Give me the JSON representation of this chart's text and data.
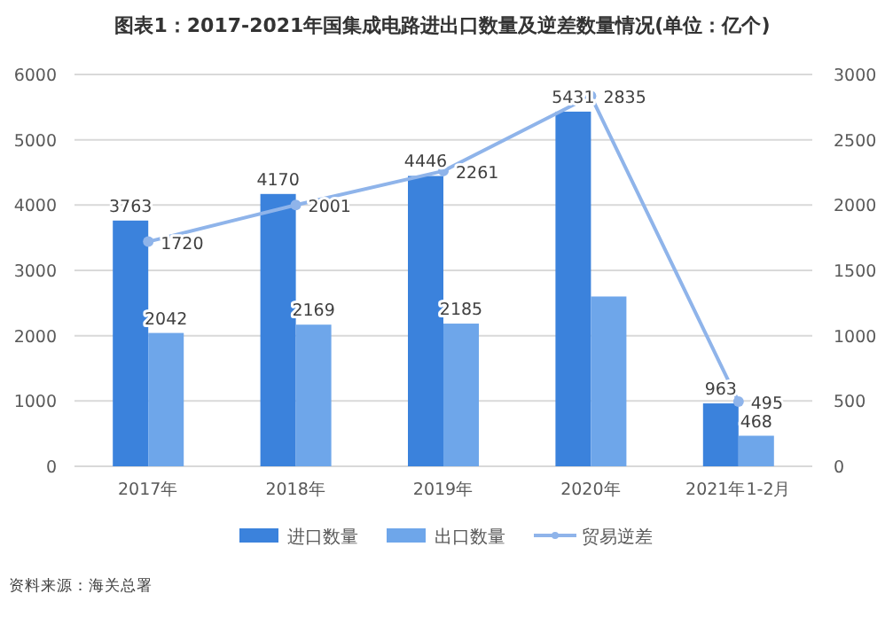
{
  "chart_data": {
    "type": "bar",
    "title": "图表1：2017-2021年国集成电路进出口数量及逆差数量情况(单位：亿个)",
    "categories": [
      "2017年",
      "2018年",
      "2019年",
      "2020年",
      "2021年1-2月"
    ],
    "series": [
      {
        "name": "进口数量",
        "color": "#3b82dc",
        "values": [
          3763,
          4170,
          4446,
          5431,
          963
        ],
        "value_labels": [
          "3763",
          "4170",
          "4446",
          "5431",
          "963"
        ]
      },
      {
        "name": "出口数量",
        "color": "#6ea6ea",
        "values": [
          2042,
          2169,
          2185,
          2600,
          468
        ],
        "value_labels": [
          "2042",
          "2169",
          "2185",
          null,
          "468"
        ]
      },
      {
        "name": "贸易逆差",
        "type": "line",
        "axis": "y2",
        "color": "#8fb4ea",
        "marker": "circle",
        "values": [
          1720,
          2001,
          2261,
          2835,
          495
        ],
        "value_labels": [
          "1720",
          "2001",
          "2261",
          "2835",
          "495"
        ]
      }
    ],
    "ylim": [
      0,
      6000
    ],
    "yticks": [
      0,
      1000,
      2000,
      3000,
      4000,
      5000,
      6000
    ],
    "y2lim": [
      0,
      3000
    ],
    "y2ticks": [
      0,
      500,
      1000,
      1500,
      2000,
      2500,
      3000
    ],
    "grid": "y",
    "legend": "bottom",
    "annotations": [
      "资料来源：海关总署"
    ]
  }
}
